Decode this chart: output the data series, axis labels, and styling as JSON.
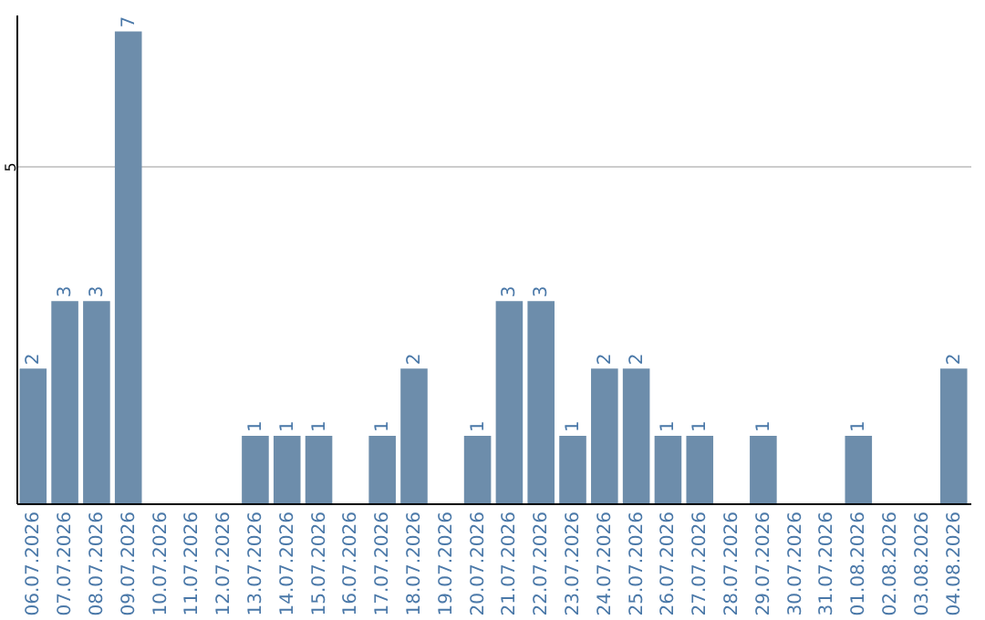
{
  "chart_data": {
    "type": "bar",
    "categories": [
      "06.07.2026",
      "07.07.2026",
      "08.07.2026",
      "09.07.2026",
      "10.07.2026",
      "11.07.2026",
      "12.07.2026",
      "13.07.2026",
      "14.07.2026",
      "15.07.2026",
      "16.07.2026",
      "17.07.2026",
      "18.07.2026",
      "19.07.2026",
      "20.07.2026",
      "21.07.2026",
      "22.07.2026",
      "23.07.2026",
      "24.07.2026",
      "25.07.2026",
      "26.07.2026",
      "27.07.2026",
      "28.07.2026",
      "29.07.2026",
      "30.07.2026",
      "31.07.2026",
      "01.08.2026",
      "02.08.2026",
      "03.08.2026",
      "04.08.2026"
    ],
    "values": [
      2,
      3,
      3,
      7,
      0,
      0,
      0,
      1,
      1,
      1,
      0,
      1,
      2,
      0,
      1,
      3,
      3,
      1,
      2,
      2,
      1,
      1,
      0,
      1,
      0,
      0,
      1,
      0,
      0,
      2
    ],
    "value_labels": [
      "2",
      "3",
      "3",
      "7",
      null,
      null,
      null,
      "1",
      "1",
      "1",
      null,
      "1",
      "2",
      null,
      "1",
      "3",
      "3",
      "1",
      "2",
      "2",
      "1",
      "1",
      null,
      "1",
      null,
      null,
      "1",
      null,
      null,
      "2"
    ],
    "color": "#6d8dab",
    "ylim": [
      0,
      7.25
    ],
    "yticks": [
      5
    ],
    "grid": "y"
  }
}
